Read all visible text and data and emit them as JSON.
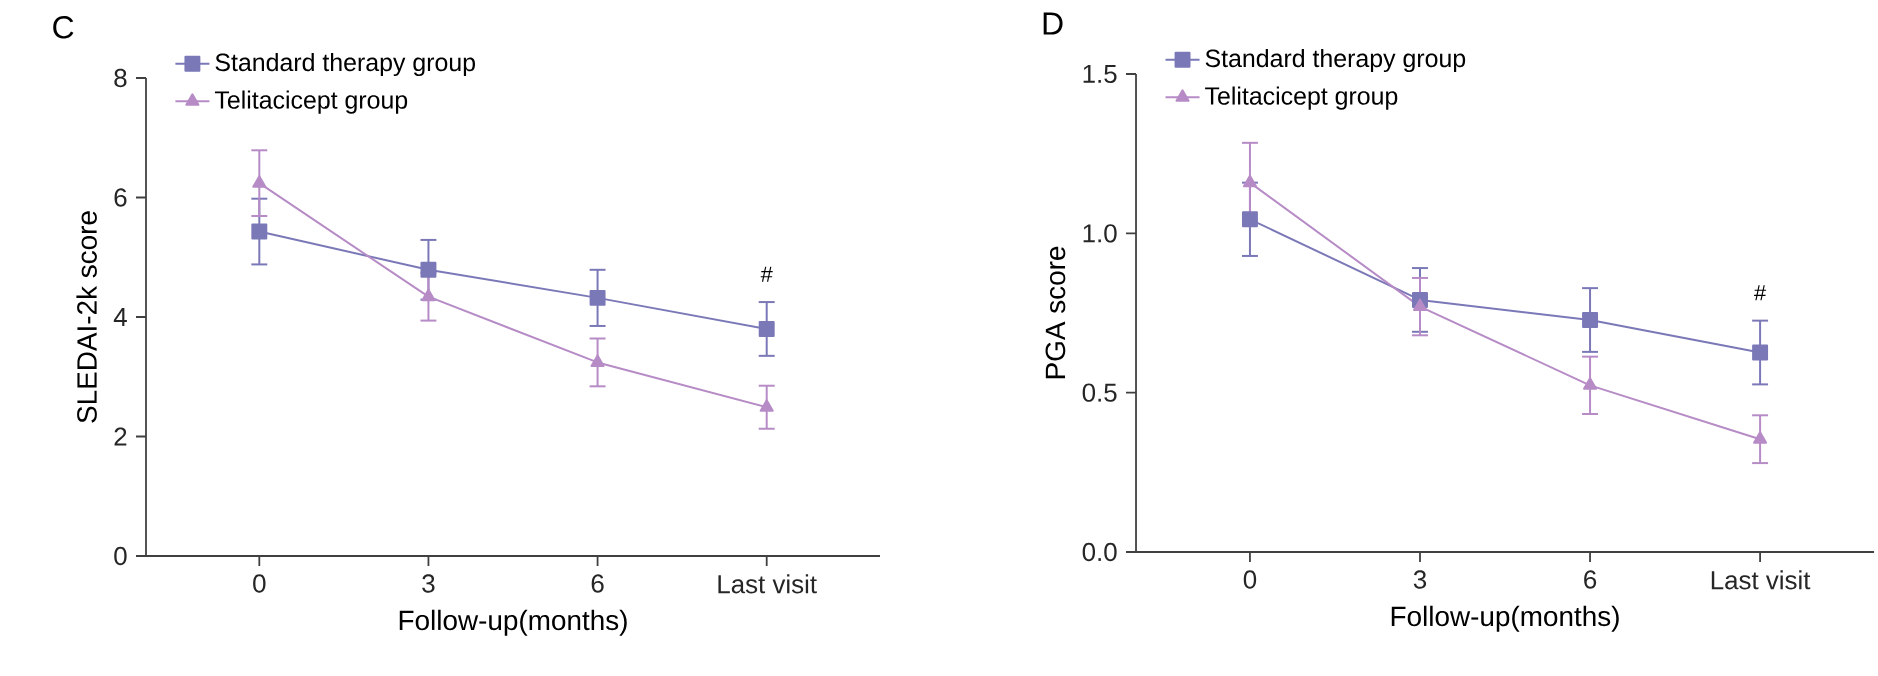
{
  "chart_data": [
    {
      "type": "line",
      "title": "C",
      "xlabel": "Follow-up(months)",
      "ylabel": "SLEDAI-2k score",
      "categories": [
        "0",
        "3",
        "6",
        "Last visit"
      ],
      "ylim": [
        0,
        8
      ],
      "yticks": [
        0,
        2,
        4,
        6,
        8
      ],
      "legend": "top left",
      "grid": false,
      "line_style": "solid",
      "series": [
        {
          "name": "Standard therapy group",
          "color": "#7b78b8",
          "marker": "square",
          "values": [
            5.43,
            4.79,
            4.32,
            3.8
          ],
          "errors": [
            0.55,
            0.5,
            0.47,
            0.45
          ]
        },
        {
          "name": "Telitacicept group",
          "color": "#b68bc6",
          "marker": "triangle",
          "values": [
            6.24,
            4.34,
            3.24,
            2.49
          ],
          "errors": [
            0.55,
            0.4,
            0.4,
            0.36
          ]
        }
      ],
      "annotations": [
        "#"
      ]
    },
    {
      "type": "line",
      "title": "D",
      "xlabel": "Follow-up(months)",
      "ylabel": "PGA score",
      "categories": [
        "0",
        "3",
        "6",
        "Last visit"
      ],
      "ylim": [
        0,
        1.5
      ],
      "yticks": [
        {
          "value": 0,
          "label": "0.0"
        },
        {
          "value": 0.5,
          "label": "0.5"
        },
        {
          "value": 1.0,
          "label": "1.0"
        },
        {
          "value": 1.5,
          "label": "1.5"
        }
      ],
      "legend": "top left",
      "grid": false,
      "line_style": "solid",
      "series": [
        {
          "name": "Standard therapy group",
          "color": "#7b78b8",
          "marker": "square",
          "values": [
            1.044,
            0.791,
            0.728,
            0.626
          ],
          "errors": [
            0.115,
            0.1,
            0.1,
            0.1
          ]
        },
        {
          "name": "Telitacicept group",
          "color": "#b68bc6",
          "marker": "triangle",
          "values": [
            1.159,
            0.77,
            0.523,
            0.354
          ],
          "errors": [
            0.125,
            0.09,
            0.09,
            0.075
          ]
        }
      ],
      "annotations": [
        "#"
      ]
    }
  ]
}
